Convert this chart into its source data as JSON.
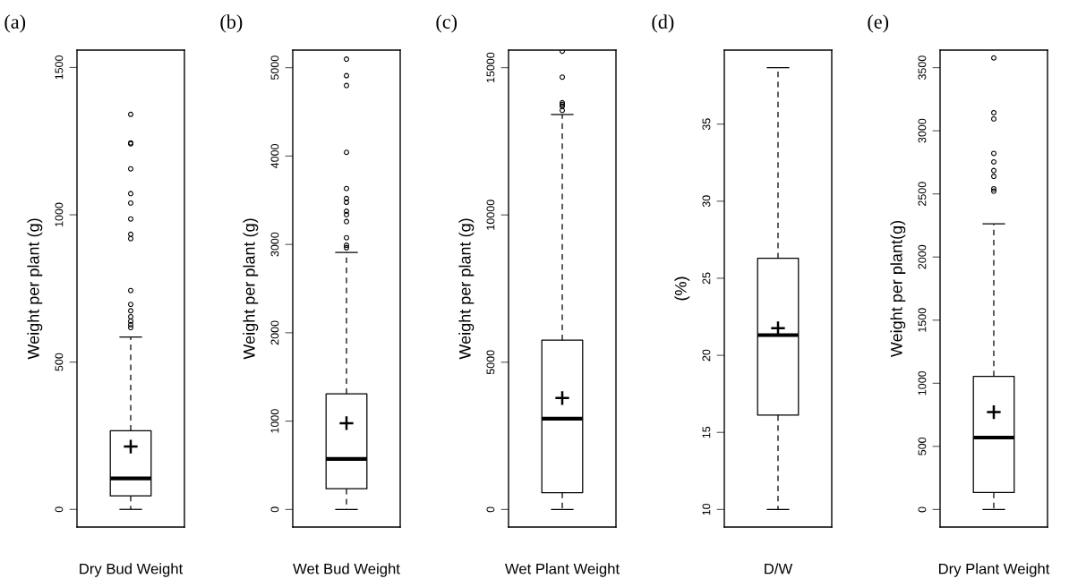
{
  "chart_data": [
    {
      "type": "box",
      "title": "(a)",
      "ylabel": "Weight per plant (g)",
      "categories": [
        "Dry Bud Weight"
      ],
      "ylim": [
        -60,
        1559
      ],
      "yticks": [
        0,
        500,
        1000,
        1500
      ],
      "boxes": [
        {
          "low": 0,
          "q1": 46,
          "median": 105,
          "q3": 267,
          "high": 585,
          "mean": 213,
          "outliers": [
            1341,
            1244,
            1241,
            1156,
            1072,
            1040,
            986,
            934,
            919,
            743,
            696,
            674,
            654,
            639,
            627,
            617
          ]
        }
      ]
    },
    {
      "type": "box",
      "title": "(b)",
      "ylabel": "Weight per plant (g)",
      "categories": [
        "Wet Bud Weight"
      ],
      "ylim": [
        -199,
        5199
      ],
      "yticks": [
        0,
        1000,
        2000,
        3000,
        4000,
        5000
      ],
      "boxes": [
        {
          "low": 0,
          "q1": 234,
          "median": 572,
          "q3": 1308,
          "high": 2909,
          "mean": 977,
          "outliers": [
            5097,
            4910,
            4798,
            4042,
            3633,
            3520,
            3477,
            3376,
            3337,
            3259,
            3076,
            2991,
            2963
          ]
        }
      ]
    },
    {
      "type": "box",
      "title": "(c)",
      "ylabel": "Weight per plant (g)",
      "categories": [
        "Wet Plant Weight"
      ],
      "ylim": [
        -596,
        15596
      ],
      "yticks": [
        0,
        5000,
        10000,
        15000
      ],
      "boxes": [
        {
          "low": 0,
          "q1": 572,
          "median": 3084,
          "q3": 5747,
          "high": 13409,
          "mean": 3785,
          "outliers": [
            15561,
            14680,
            13808,
            13750,
            13692,
            13551
          ]
        }
      ]
    },
    {
      "type": "box",
      "title": "(d)",
      "ylabel": "(%)",
      "categories": [
        "D/W"
      ],
      "ylim": [
        8.86,
        39.8
      ],
      "yticks": [
        10,
        15,
        20,
        25,
        30,
        35
      ],
      "boxes": [
        {
          "low": 10,
          "q1": 16.12,
          "median": 21.31,
          "q3": 26.29,
          "high": 38.66,
          "mean": 21.76
        }
      ]
    },
    {
      "type": "box",
      "title": "(e)",
      "ylabel": "Weight per plant(g)",
      "categories": [
        "Dry Plant Weight"
      ],
      "ylim": [
        -139,
        3639
      ],
      "yticks": [
        0,
        500,
        1000,
        1500,
        2000,
        2500,
        3000,
        3500
      ],
      "boxes": [
        {
          "low": 0,
          "q1": 134,
          "median": 570,
          "q3": 1055,
          "high": 2263,
          "mean": 771,
          "outliers": [
            3577,
            3143,
            3094,
            2821,
            2753,
            2685,
            2639,
            2541,
            2522
          ]
        }
      ]
    }
  ]
}
